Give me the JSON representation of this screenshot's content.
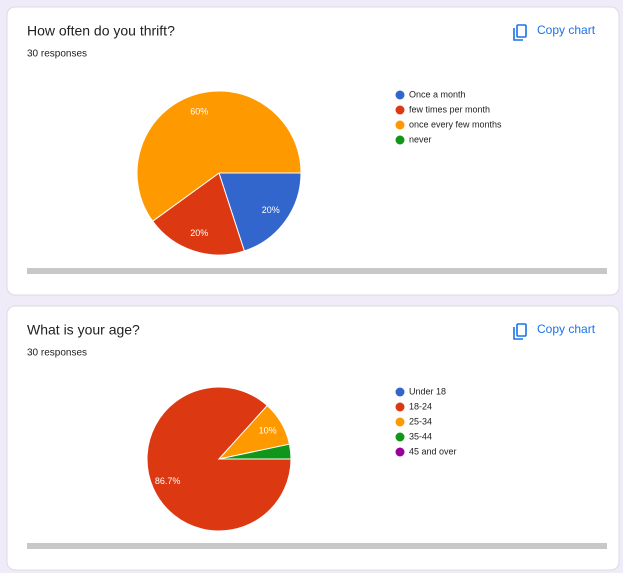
{
  "chart_data": [
    {
      "type": "pie",
      "title": "How often do you thrift?",
      "subtitle": "30 responses",
      "action_label": "Copy chart",
      "categories": [
        "Once a month",
        "few times per month",
        "once every few months",
        "never"
      ],
      "values": [
        20,
        20,
        60,
        0
      ],
      "value_labels": [
        "20%",
        "20%",
        "60%",
        null
      ],
      "colors": [
        "#3366cc",
        "#dc3912",
        "#ff9900",
        "#109618"
      ]
    },
    {
      "type": "pie",
      "title": "What is your age?",
      "subtitle": "30 responses",
      "action_label": "Copy chart",
      "categories": [
        "Under 18",
        "18-24",
        "25-34",
        "35-44",
        "45 and over"
      ],
      "values": [
        0,
        86.7,
        10,
        3.3,
        0
      ],
      "value_labels": [
        null,
        "86.7%",
        "10%",
        null,
        null
      ],
      "colors": [
        "#3366cc",
        "#dc3912",
        "#ff9900",
        "#109618",
        "#990099"
      ]
    }
  ]
}
